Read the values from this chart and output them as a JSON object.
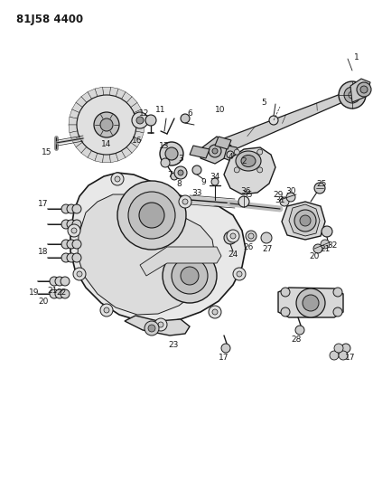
{
  "title": "81J58 4400",
  "bg_color": "#ffffff",
  "line_color": "#1a1a1a",
  "figsize": [
    4.14,
    5.33
  ],
  "dpi": 100
}
